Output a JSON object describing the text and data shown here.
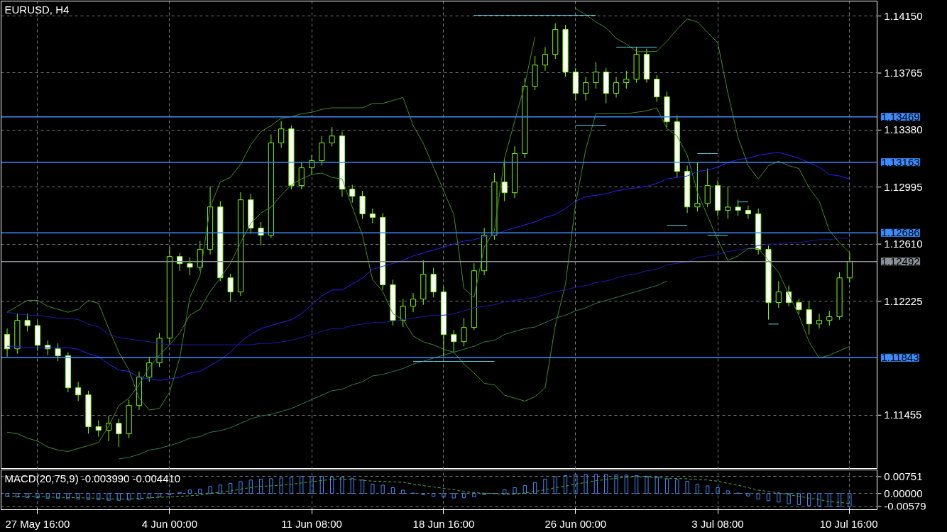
{
  "chart_data": [
    {
      "type": "candlestick",
      "title": "EURUSD, H4",
      "color": "#7cfc00",
      "categories": [
        null,
        null,
        null,
        "27 May 16:00",
        null,
        null,
        null,
        null,
        null,
        null,
        null,
        null,
        null,
        null,
        null,
        null,
        "4 Jun 00:00",
        null,
        null,
        null,
        null,
        null,
        null,
        null,
        null,
        null,
        null,
        null,
        null,
        null,
        "11 Jun 08:00",
        null,
        null,
        null,
        null,
        null,
        null,
        null,
        null,
        null,
        null,
        null,
        null,
        "18 Jun 16:00",
        null,
        null,
        null,
        null,
        null,
        null,
        null,
        null,
        null,
        null,
        null,
        null,
        "26 Jun 00:00",
        null,
        null,
        null,
        null,
        null,
        null,
        null,
        null,
        null,
        null,
        null,
        null,
        null,
        "3 Jul 08:00",
        null,
        null,
        null,
        null,
        null,
        null,
        null,
        null,
        null,
        null,
        null,
        null,
        "10 Jul 16:00"
      ],
      "ohlc": [
        [
          1.12,
          1.1204,
          1.1185,
          1.11903
        ],
        [
          1.11903,
          1.1214,
          1.1187,
          1.12095
        ],
        [
          1.12095,
          1.1214,
          1.1202,
          1.1206
        ],
        [
          1.1206,
          1.1209,
          1.1189,
          1.11927
        ],
        [
          1.11927,
          1.1196,
          1.1186,
          1.11903
        ],
        [
          1.11903,
          1.1194,
          1.1182,
          1.11856
        ],
        [
          1.11856,
          1.1188,
          1.1161,
          1.1164
        ],
        [
          1.1164,
          1.1168,
          1.1155,
          1.11592
        ],
        [
          1.11592,
          1.1162,
          1.1133,
          1.11377
        ],
        [
          1.11377,
          1.1142,
          1.1131,
          1.11353
        ],
        [
          1.11353,
          1.1145,
          1.1128,
          1.114
        ],
        [
          1.114,
          1.1143,
          1.1124,
          1.11329
        ],
        [
          1.11329,
          1.1156,
          1.113,
          1.1152
        ],
        [
          1.1152,
          1.1175,
          1.1149,
          1.11712
        ],
        [
          1.11712,
          1.1185,
          1.1168,
          1.11808
        ],
        [
          1.11808,
          1.1201,
          1.1178,
          1.11975
        ],
        [
          1.11975,
          1.1259,
          1.1195,
          1.12526
        ],
        [
          1.12526,
          1.1255,
          1.1243,
          1.12478
        ],
        [
          1.12478,
          1.1252,
          1.124,
          1.12454
        ],
        [
          1.12454,
          1.1263,
          1.1243,
          1.12574
        ],
        [
          1.12574,
          1.13,
          1.1254,
          1.12861
        ],
        [
          1.12861,
          1.129,
          1.1236,
          1.12382
        ],
        [
          1.12382,
          1.1241,
          1.1222,
          1.12287
        ],
        [
          1.12287,
          1.1296,
          1.1226,
          1.12909
        ],
        [
          1.12909,
          1.1295,
          1.1268,
          1.12718
        ],
        [
          1.12718,
          1.1276,
          1.126,
          1.1267
        ],
        [
          1.1267,
          1.1335,
          1.1265,
          1.13293
        ],
        [
          1.13293,
          1.1344,
          1.1326,
          1.13388
        ],
        [
          1.13388,
          1.1341,
          1.1298,
          1.13005
        ],
        [
          1.13005,
          1.1316,
          1.1298,
          1.13125
        ],
        [
          1.13125,
          1.1321,
          1.1308,
          1.13173
        ],
        [
          1.13173,
          1.1334,
          1.1314,
          1.13293
        ],
        [
          1.13293,
          1.134,
          1.1327,
          1.1334
        ],
        [
          1.1334,
          1.1337,
          1.1293,
          1.12981
        ],
        [
          1.12981,
          1.1301,
          1.1289,
          1.12933
        ],
        [
          1.12933,
          1.1297,
          1.1278,
          1.12814
        ],
        [
          1.12814,
          1.1285,
          1.1275,
          1.1279
        ],
        [
          1.1279,
          1.1282,
          1.123,
          1.12335
        ],
        [
          1.12335,
          1.1237,
          1.1206,
          1.12095
        ],
        [
          1.12095,
          1.1224,
          1.1205,
          1.12191
        ],
        [
          1.12191,
          1.1228,
          1.1215,
          1.12239
        ],
        [
          1.12239,
          1.125,
          1.122,
          1.12406
        ],
        [
          1.12406,
          1.1245,
          1.1225,
          1.12287
        ],
        [
          1.12287,
          1.1232,
          1.1185,
          1.11999
        ],
        [
          1.11999,
          1.1203,
          1.1188,
          1.11951
        ],
        [
          1.11951,
          1.1211,
          1.1192,
          1.12047
        ],
        [
          1.12047,
          1.1248,
          1.1203,
          1.1243
        ],
        [
          1.1243,
          1.1272,
          1.124,
          1.1267
        ],
        [
          1.1267,
          1.1309,
          1.1264,
          1.13029
        ],
        [
          1.13029,
          1.1318,
          1.129,
          1.12957
        ],
        [
          1.12957,
          1.1327,
          1.1292,
          1.13221
        ],
        [
          1.13221,
          1.1373,
          1.1319,
          1.13676
        ],
        [
          1.13676,
          1.1388,
          1.1365,
          1.13819
        ],
        [
          1.13819,
          1.1394,
          1.1378,
          1.13891
        ],
        [
          1.13891,
          1.141,
          1.1386,
          1.14059
        ],
        [
          1.14059,
          1.1409,
          1.1374,
          1.13772
        ],
        [
          1.13772,
          1.138,
          1.1358,
          1.13628
        ],
        [
          1.13628,
          1.1374,
          1.1358,
          1.137
        ],
        [
          1.137,
          1.1384,
          1.1366,
          1.13772
        ],
        [
          1.13772,
          1.138,
          1.1356,
          1.13628
        ],
        [
          1.13628,
          1.1374,
          1.136,
          1.137
        ],
        [
          1.137,
          1.1378,
          1.1366,
          1.13724
        ],
        [
          1.13724,
          1.1394,
          1.137,
          1.13891
        ],
        [
          1.13891,
          1.1393,
          1.137,
          1.13724
        ],
        [
          1.13724,
          1.1375,
          1.1357,
          1.13604
        ],
        [
          1.13604,
          1.1364,
          1.134,
          1.13436
        ],
        [
          1.13436,
          1.1348,
          1.1306,
          1.13101
        ],
        [
          1.13101,
          1.1314,
          1.1282,
          1.12861
        ],
        [
          1.12861,
          1.1316,
          1.1283,
          1.12885
        ],
        [
          1.12885,
          1.1312,
          1.1286,
          1.13005
        ],
        [
          1.13005,
          1.1304,
          1.128,
          1.12838
        ],
        [
          1.12838,
          1.13,
          1.1278,
          1.1286
        ],
        [
          1.1286,
          1.1291,
          1.128,
          1.12838
        ],
        [
          1.12838,
          1.1287,
          1.1278,
          1.12814
        ],
        [
          1.12814,
          1.1285,
          1.1254,
          1.12574
        ],
        [
          1.12574,
          1.126,
          1.121,
          1.12215
        ],
        [
          1.12215,
          1.1236,
          1.1218,
          1.12287
        ],
        [
          1.12287,
          1.1233,
          1.1219,
          1.12215
        ],
        [
          1.12215,
          1.1224,
          1.1214,
          1.12167
        ],
        [
          1.12167,
          1.1222,
          1.12,
          1.12071
        ],
        [
          1.12071,
          1.1214,
          1.1204,
          1.12095
        ],
        [
          1.12095,
          1.1216,
          1.1206,
          1.1212
        ],
        [
          1.1212,
          1.1242,
          1.121,
          1.12382
        ],
        [
          1.12382,
          1.1255,
          1.1235,
          1.12492
        ]
      ],
      "series": [
        {
          "type": "line",
          "color": "#2222ff",
          "values": [
            1.1192,
            1.1192,
            1.1191,
            1.1191,
            1.1191,
            1.1191,
            1.1191,
            1.119,
            1.1187,
            1.1185,
            1.118,
            1.1176,
            1.1175,
            1.1171,
            1.117,
            1.1169,
            1.117,
            1.1171,
            1.1174,
            1.1175,
            1.1179,
            1.1183,
            1.1188,
            1.1195,
            1.12,
            1.1204,
            1.1206,
            1.1208,
            1.121,
            1.1214,
            1.122,
            1.1226,
            1.123,
            1.123,
            1.1234,
            1.1238,
            1.1244,
            1.1246,
            1.1248,
            1.125,
            1.1253,
            1.1255,
            1.1257,
            1.1259,
            1.1261,
            1.1263,
            1.1264,
            1.1266,
            1.1267,
            1.127,
            1.1272,
            1.1274,
            1.1276,
            1.1279,
            1.1281,
            1.1285,
            1.129,
            1.1293,
            1.1294,
            1.1295,
            1.1297,
            1.1298,
            1.1299,
            1.13,
            1.1302,
            1.1305,
            1.1306,
            1.1307,
            1.131,
            1.1311,
            1.1313,
            1.1316,
            1.1318,
            1.1319,
            1.1321,
            1.1322,
            1.1323,
            1.1321,
            1.1319,
            1.1316,
            1.1313,
            1.1308,
            1.1307,
            1.1305
          ]
        },
        {
          "type": "line",
          "color": "#1a1aa8",
          "values": [
            1.1215,
            1.1214,
            1.1213,
            1.1213,
            1.1212,
            1.1211,
            1.1211,
            1.121,
            1.1207,
            1.1205,
            1.12,
            1.1198,
            1.1197,
            1.1196,
            1.1195,
            1.1194,
            1.1193,
            1.1193,
            1.1193,
            1.1193,
            1.1193,
            1.1193,
            1.1193,
            1.1193,
            1.1193,
            1.1194,
            1.1194,
            1.1195,
            1.1196,
            1.1198,
            1.12,
            1.1202,
            1.1204,
            1.1204,
            1.1206,
            1.1207,
            1.1208,
            1.1208,
            1.1209,
            1.121,
            1.1211,
            1.1212,
            1.1213,
            1.1213,
            1.1214,
            1.1216,
            1.1218,
            1.1219,
            1.122,
            1.1222,
            1.1223,
            1.1224,
            1.1225,
            1.1227,
            1.1229,
            1.123,
            1.1232,
            1.1233,
            1.1235,
            1.1236,
            1.1238,
            1.124,
            1.1241,
            1.1243,
            1.1244,
            1.1247,
            1.1248,
            1.1249,
            1.1252,
            1.1253,
            1.1254,
            1.1256,
            1.1257,
            1.1258,
            1.126,
            1.1261,
            1.1261,
            1.1262,
            1.1262,
            1.1263,
            1.1264,
            1.1264,
            1.1265,
            1.1265
          ]
        },
        {
          "type": "line",
          "color": "#3f8f2a",
          "values": [
            1.1215,
            1.1219,
            1.1223,
            1.1223,
            1.1219,
            1.1217,
            1.1215,
            1.1217,
            1.1223,
            1.1221,
            1.1204,
            1.1188,
            1.1176,
            1.1157,
            1.1149,
            1.115,
            1.1161,
            1.1184,
            1.1225,
            1.124,
            1.1286,
            1.1303,
            1.1306,
            1.1315,
            1.1328,
            1.1337,
            1.1341,
            1.1346,
            1.1347,
            1.1349,
            1.135,
            1.1352,
            1.1353,
            1.1353,
            1.1353,
            1.1353,
            1.1356,
            1.1356,
            1.1358,
            1.136,
            1.1341,
            1.1329,
            1.1313,
            1.1297,
            1.1281,
            1.1231,
            1.1225,
            1.1259,
            1.127,
            1.1319,
            1.1344,
            1.1369,
            1.1401,
            null,
            null,
            null,
            1.142,
            1.1416,
            1.1411,
            1.1407,
            1.14,
            1.1396,
            1.1391,
            1.1391,
            1.1391,
            1.1398,
            1.1406,
            1.1413,
            1.1411,
            1.1404,
            1.1397,
            1.1363,
            1.1333,
            1.1314,
            1.1305,
            1.1314,
            1.1317,
            1.1314,
            1.1312,
            1.1299,
            1.129,
            1.127,
            1.1262,
            1.1255
          ]
        },
        {
          "type": "line",
          "color": "#3f8f2a",
          "values": [
            1.1134,
            1.1133,
            1.113,
            1.1128,
            1.1124,
            1.1122,
            1.1121,
            1.1123,
            1.1125,
            1.1127,
            1.1138,
            1.1152,
            1.1157,
            1.1166,
            1.1178,
            1.1186,
            1.1193,
            1.1201,
            1.1213,
            1.1217,
            1.1229,
            1.1238,
            1.1248,
            1.1262,
            1.1275,
            1.1282,
            1.1286,
            1.1294,
            1.1301,
            1.1305,
            1.1308,
            1.1309,
            1.1306,
            1.1305,
            1.1286,
            1.1267,
            1.1237,
            1.1229,
            1.1214,
            1.121,
            1.1199,
            1.1195,
            1.1193,
            1.119,
            1.1188,
            1.118,
            1.1174,
            1.1167,
            1.1166,
            1.1159,
            1.1157,
            1.1155,
            1.1158,
            1.1164,
            1.1206,
            1.1234,
            1.1288,
            1.1325,
            1.1349,
            1.1349,
            1.1349,
            1.1349,
            1.135,
            1.1351,
            1.1353,
            1.1339,
            1.1334,
            1.1321,
            1.1296,
            1.128,
            1.1264,
            1.125,
            1.1253,
            1.1258,
            1.1258,
            1.125,
            1.1242,
            1.1227,
            1.1213,
            1.1195,
            1.1184,
            1.1186,
            1.1189,
            1.1192
          ]
        },
        {
          "type": "line",
          "color": "#2e7d55",
          "values": [
            null,
            null,
            null,
            null,
            null,
            null,
            null,
            null,
            null,
            null,
            null,
            1.1116,
            1.1117,
            1.1119,
            1.1122,
            1.1123,
            1.1125,
            1.1127,
            1.113,
            1.1131,
            1.1134,
            1.1135,
            1.1137,
            1.114,
            1.1143,
            1.1145,
            1.1146,
            1.1148,
            1.115,
            1.1153,
            1.1156,
            1.1159,
            1.1162,
            1.1163,
            1.1166,
            1.1168,
            1.1172,
            1.1173,
            1.1175,
            1.1177,
            1.118,
            1.1182,
            1.1184,
            1.1186,
            1.1188,
            1.119,
            1.1192,
            1.1195,
            1.1196,
            1.12,
            1.1202,
            1.1204,
            1.1205,
            1.1208,
            1.1211,
            1.1213,
            1.1216,
            1.1218,
            1.1221,
            1.1223,
            1.1225,
            1.1227,
            1.1229,
            1.1231,
            1.1233,
            1.1236,
            null,
            null,
            null,
            null,
            null,
            null,
            null,
            null,
            null,
            null,
            null,
            null,
            null,
            null,
            null,
            null,
            null,
            null
          ]
        },
        {
          "type": "line",
          "color": "#5ad2e6",
          "values": [
            null,
            null,
            null,
            null,
            null,
            null,
            null,
            null,
            null,
            null,
            null,
            null,
            null,
            null,
            null,
            null,
            null,
            null,
            null,
            null,
            null,
            null,
            null,
            null,
            null,
            null,
            null,
            null,
            null,
            null,
            null,
            null,
            null,
            null,
            null,
            null,
            null,
            null,
            null,
            null,
            1.11818,
            1.11818,
            1.11818,
            1.11818,
            1.11818,
            1.11818,
            1.11818,
            1.11818,
            1.11818,
            null,
            null,
            null,
            null,
            null,
            null,
            null,
            null,
            null,
            null,
            null,
            1.1394,
            1.1394,
            1.1394,
            1.1394,
            1.1394,
            null,
            null,
            null,
            null,
            1.1267,
            1.1267,
            1.1267,
            null,
            null,
            null,
            1.1207,
            1.1207,
            null,
            null,
            null,
            null,
            null,
            null,
            null
          ]
        },
        {
          "type": "line",
          "color": "#5ad2e6",
          "values": [
            null,
            null,
            null,
            null,
            null,
            null,
            null,
            null,
            null,
            null,
            null,
            null,
            null,
            null,
            null,
            null,
            null,
            null,
            null,
            null,
            null,
            null,
            null,
            null,
            null,
            null,
            null,
            null,
            null,
            null,
            null,
            null,
            null,
            null,
            null,
            null,
            null,
            null,
            null,
            null,
            null,
            null,
            null,
            null,
            null,
            null,
            1.14155,
            1.14155,
            1.14155,
            1.14155,
            1.14155,
            1.14155,
            1.14155,
            1.14155,
            1.14155,
            1.14155,
            1.14155,
            1.14155,
            1.14155,
            null,
            null,
            null,
            null,
            null,
            null,
            1.12737,
            1.12737,
            1.12737,
            null,
            null,
            null,
            null,
            1.12895,
            1.12895,
            null,
            null,
            null,
            null,
            null,
            null,
            null,
            null,
            null,
            null
          ]
        },
        {
          "type": "line",
          "color": "#5ad2e6",
          "values": [
            null,
            null,
            null,
            null,
            null,
            null,
            null,
            null,
            null,
            null,
            null,
            null,
            null,
            null,
            null,
            null,
            null,
            null,
            null,
            null,
            null,
            null,
            null,
            null,
            null,
            null,
            null,
            null,
            null,
            null,
            null,
            null,
            null,
            null,
            null,
            null,
            null,
            null,
            null,
            null,
            null,
            null,
            null,
            null,
            null,
            null,
            null,
            null,
            null,
            null,
            null,
            null,
            null,
            null,
            null,
            null,
            1.13413,
            1.13413,
            1.13413,
            1.13413,
            null,
            null,
            null,
            null,
            null,
            null,
            null,
            null,
            1.13221,
            1.13221,
            1.13221,
            null,
            null,
            null,
            null,
            null,
            null,
            null,
            null,
            null,
            null,
            null,
            null,
            null
          ]
        }
      ],
      "ref_lines": [
        {
          "axis": "y",
          "value": 1.13469,
          "label": "1.13469",
          "color": "#3c8cff"
        },
        {
          "axis": "y",
          "value": 1.13163,
          "label": "1.13163",
          "color": "#3c8cff"
        },
        {
          "axis": "y",
          "value": 1.12686,
          "label": "1.12686",
          "color": "#3c8cff"
        },
        {
          "axis": "y",
          "value": 1.11843,
          "label": "1.11843",
          "color": "#3c8cff"
        },
        {
          "axis": "y",
          "value": 1.12492,
          "label": "1.12492",
          "color": "#8a9198"
        }
      ],
      "ylim": [
        1.1109,
        1.14251
      ],
      "yticks": [
        {
          "value": 1.1415,
          "label": "1.14150"
        },
        {
          "value": 1.13765,
          "label": "1.13765"
        },
        {
          "value": 1.1338,
          "label": "1.13380"
        },
        {
          "value": 1.12995,
          "label": "1.12995"
        },
        {
          "value": 1.1261,
          "label": "1.12610"
        },
        {
          "value": 1.12225,
          "label": "1.12225"
        },
        {
          "value": 1.11455,
          "label": "1.11455"
        }
      ],
      "tick_labels": "y",
      "grid": true
    },
    {
      "type": "bar",
      "title": "MACD(20,75,9) -0.003990 -0.004410",
      "color": "#3c8cff",
      "categories": [
        null,
        null,
        null,
        "27 May 16:00",
        null,
        null,
        null,
        null,
        null,
        null,
        null,
        null,
        null,
        null,
        null,
        null,
        "4 Jun 00:00",
        null,
        null,
        null,
        null,
        null,
        null,
        null,
        null,
        null,
        null,
        null,
        null,
        null,
        "11 Jun 08:00",
        null,
        null,
        null,
        null,
        null,
        null,
        null,
        null,
        null,
        null,
        null,
        null,
        "18 Jun 16:00",
        null,
        null,
        null,
        null,
        null,
        null,
        null,
        null,
        null,
        null,
        null,
        null,
        "26 Jun 00:00",
        null,
        null,
        null,
        null,
        null,
        null,
        null,
        null,
        null,
        null,
        null,
        null,
        null,
        "3 Jul 08:00",
        null,
        null,
        null,
        null,
        null,
        null,
        null,
        null,
        null,
        null,
        null,
        null,
        "10 Jul 16:00"
      ],
      "values": [
        -0.0014,
        -0.0016,
        -0.0018,
        -0.0019,
        -0.0021,
        -0.0022,
        -0.0024,
        -0.0025,
        -0.0027,
        -0.0028,
        -0.003,
        -0.003,
        -0.0029,
        -0.0026,
        -0.002,
        -0.0015,
        -0.0005,
        0.0005,
        0.0016,
        0.002,
        0.0031,
        0.0038,
        0.0045,
        0.0053,
        0.006,
        0.0064,
        0.0066,
        0.0069,
        0.0072,
        0.0075,
        0.0076,
        0.0076,
        0.0074,
        0.0073,
        0.0068,
        0.006,
        0.0042,
        0.0037,
        0.0026,
        0.0015,
        0.0002,
        -0.0005,
        -0.0012,
        -0.0016,
        -0.002,
        -0.0019,
        -0.0015,
        -0.0005,
        0.0,
        0.0017,
        0.0026,
        0.0036,
        0.0049,
        0.0064,
        0.0075,
        0.008,
        0.0084,
        0.0085,
        0.0085,
        0.0085,
        0.0083,
        0.0082,
        0.008,
        0.0077,
        0.0074,
        0.0065,
        0.0062,
        0.0054,
        0.0041,
        0.0034,
        0.0026,
        0.0012,
        0.0002,
        -0.0011,
        -0.0025,
        -0.0032,
        -0.0038,
        -0.0046,
        -0.005,
        -0.0054,
        -0.0056,
        -0.0057,
        -0.0057,
        -0.0058
      ],
      "series": [
        {
          "type": "line",
          "color": "#4caf50",
          "line_style": "dashed",
          "values": [
            -0.0011,
            -0.0012,
            -0.0013,
            -0.0014,
            -0.0016,
            -0.0017,
            -0.0018,
            -0.0019,
            -0.002,
            -0.0021,
            -0.0024,
            -0.0025,
            -0.0024,
            -0.0022,
            -0.0019,
            -0.0017,
            -0.0015,
            -0.0013,
            -0.001,
            -0.0007,
            0.0001,
            0.0006,
            0.0011,
            0.0019,
            0.0027,
            0.0032,
            0.0034,
            0.0037,
            0.0041,
            0.0047,
            0.0052,
            0.0058,
            0.0063,
            0.0065,
            0.0062,
            0.0059,
            0.0055,
            0.0054,
            0.0052,
            0.005,
            0.0042,
            0.0035,
            0.0029,
            0.0023,
            0.0017,
            0.0008,
            0.0004,
            0.0001,
            0.0,
            -0.0004,
            -0.0003,
            0.0002,
            0.0009,
            0.0017,
            0.0026,
            0.0033,
            0.0042,
            0.0049,
            0.0057,
            0.0062,
            0.0068,
            0.0072,
            0.0075,
            0.0073,
            0.0071,
            0.0068,
            0.0067,
            0.0065,
            0.0062,
            0.006,
            0.0055,
            0.0045,
            0.0037,
            0.0026,
            0.0015,
            0.0009,
            0.0003,
            -0.0006,
            -0.0012,
            -0.0021,
            -0.0027,
            -0.0036,
            -0.004,
            -0.0044
          ]
        }
      ],
      "ylim": [
        -0.0072,
        0.0105
      ],
      "yticks": [
        {
          "value": 0.00751,
          "label": "0.00751"
        },
        {
          "value": 0.0,
          "label": "0.00000"
        },
        {
          "value": -0.00579,
          "label": "-0.00579"
        }
      ],
      "grid": true
    }
  ]
}
